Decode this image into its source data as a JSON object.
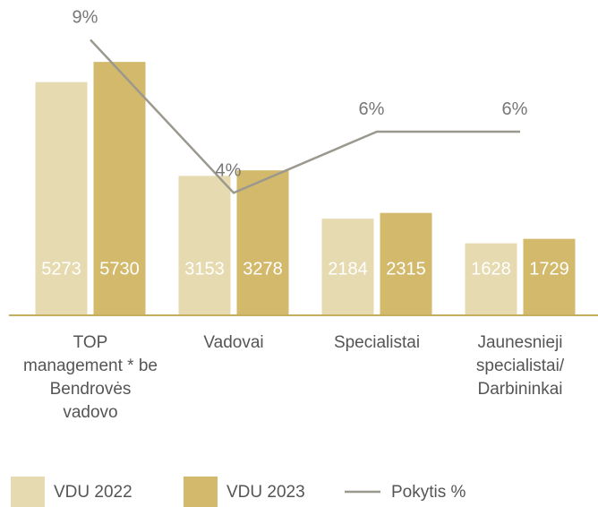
{
  "chart_data": {
    "type": "bar",
    "categories": [
      "TOP management * be Bendrovės vadovo",
      "Vadovai",
      "Specialistai",
      "Jaunesnieji specialistai/ Darbininkai"
    ],
    "series": [
      {
        "name": "VDU 2022",
        "color": "#e6dab0",
        "values": [
          5273,
          3153,
          2184,
          1628
        ]
      },
      {
        "name": "VDU 2023",
        "color": "#d3b96b",
        "values": [
          5730,
          3278,
          2315,
          1729
        ]
      },
      {
        "name": "Pokytis %",
        "type": "line",
        "axis": "y2",
        "color": "#9b988e",
        "values": [
          9,
          4,
          6,
          6
        ],
        "value_labels": [
          "9%",
          "4%",
          "6%",
          "6%"
        ]
      }
    ],
    "ylim": [
      0,
      7130
    ],
    "y2lim": [
      0,
      10.3
    ],
    "legend": "bottom"
  }
}
